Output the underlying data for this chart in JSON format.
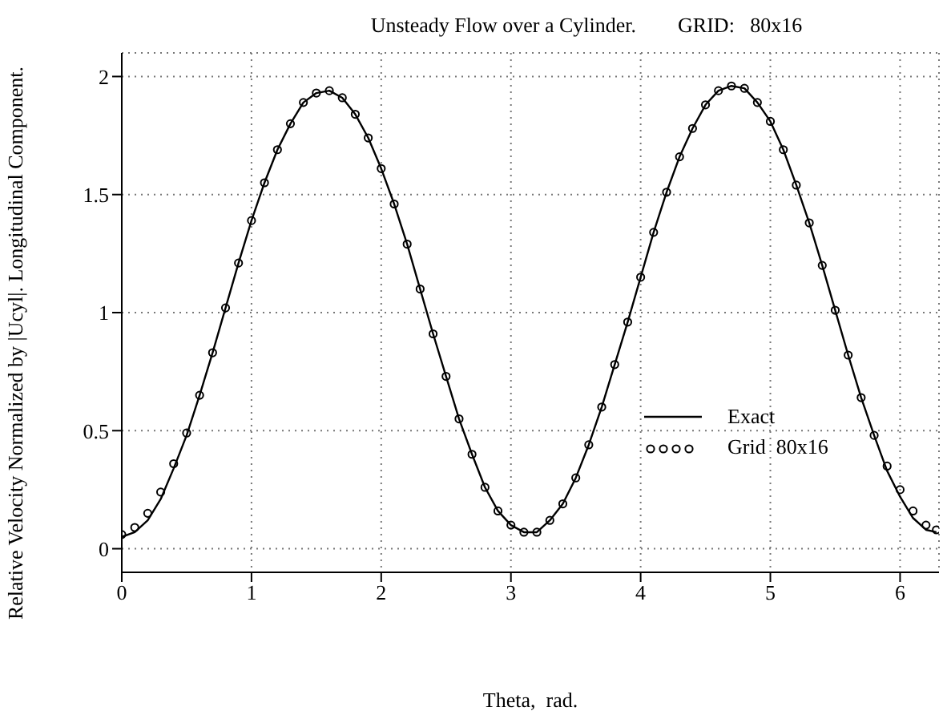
{
  "chart_data": {
    "type": "line",
    "title": "Unsteady Flow over a Cylinder.        GRID:   80x16",
    "xlabel": "Theta,  rad.",
    "ylabel": "Relative Velocity Normalized by |Ucyl|. Longitudinal Component.",
    "xlim": [
      0,
      6.3
    ],
    "ylim": [
      -0.1,
      2.1
    ],
    "xticks": [
      0,
      1,
      2,
      3,
      4,
      5,
      6
    ],
    "yticks": [
      0,
      0.5,
      1,
      1.5,
      2
    ],
    "grid": true,
    "legend": "right",
    "x": [
      0,
      0.1,
      0.2,
      0.3,
      0.4,
      0.5,
      0.6,
      0.7,
      0.8,
      0.9,
      1.0,
      1.1,
      1.2,
      1.3,
      1.4,
      1.5,
      1.6,
      1.7,
      1.8,
      1.9,
      2.0,
      2.1,
      2.2,
      2.3,
      2.4,
      2.5,
      2.6,
      2.7,
      2.8,
      2.9,
      3.0,
      3.1,
      3.2,
      3.3,
      3.4,
      3.5,
      3.6,
      3.7,
      3.8,
      3.9,
      4.0,
      4.1,
      4.2,
      4.3,
      4.4,
      4.5,
      4.6,
      4.7,
      4.8,
      4.9,
      5.0,
      5.1,
      5.2,
      5.3,
      5.4,
      5.5,
      5.6,
      5.7,
      5.8,
      5.9,
      6.0,
      6.1,
      6.2,
      6.28
    ],
    "series": [
      {
        "name": "Exact",
        "type": "line",
        "color": "#000000",
        "marker": "none",
        "line_style": "solid",
        "values": [
          0.05,
          0.07,
          0.12,
          0.21,
          0.34,
          0.48,
          0.65,
          0.83,
          1.02,
          1.21,
          1.39,
          1.55,
          1.69,
          1.8,
          1.89,
          1.93,
          1.94,
          1.91,
          1.84,
          1.74,
          1.61,
          1.46,
          1.29,
          1.1,
          0.91,
          0.73,
          0.55,
          0.4,
          0.26,
          0.16,
          0.1,
          0.07,
          0.07,
          0.12,
          0.19,
          0.3,
          0.44,
          0.6,
          0.78,
          0.96,
          1.15,
          1.34,
          1.51,
          1.66,
          1.78,
          1.88,
          1.94,
          1.96,
          1.95,
          1.89,
          1.81,
          1.69,
          1.54,
          1.38,
          1.2,
          1.01,
          0.82,
          0.64,
          0.48,
          0.33,
          0.22,
          0.13,
          0.08,
          0.07
        ]
      },
      {
        "name": "Grid  80x16",
        "type": "scatter",
        "color": "#000000",
        "marker": "circle",
        "values": [
          0.06,
          0.09,
          0.15,
          0.24,
          0.36,
          0.49,
          0.65,
          0.83,
          1.02,
          1.21,
          1.39,
          1.55,
          1.69,
          1.8,
          1.89,
          1.93,
          1.94,
          1.91,
          1.84,
          1.74,
          1.61,
          1.46,
          1.29,
          1.1,
          0.91,
          0.73,
          0.55,
          0.4,
          0.26,
          0.16,
          0.1,
          0.07,
          0.07,
          0.12,
          0.19,
          0.3,
          0.44,
          0.6,
          0.78,
          0.96,
          1.15,
          1.34,
          1.51,
          1.66,
          1.78,
          1.88,
          1.94,
          1.96,
          1.95,
          1.89,
          1.81,
          1.69,
          1.54,
          1.38,
          1.2,
          1.01,
          0.82,
          0.64,
          0.48,
          0.35,
          0.25,
          0.16,
          0.1,
          0.08
        ]
      }
    ]
  }
}
